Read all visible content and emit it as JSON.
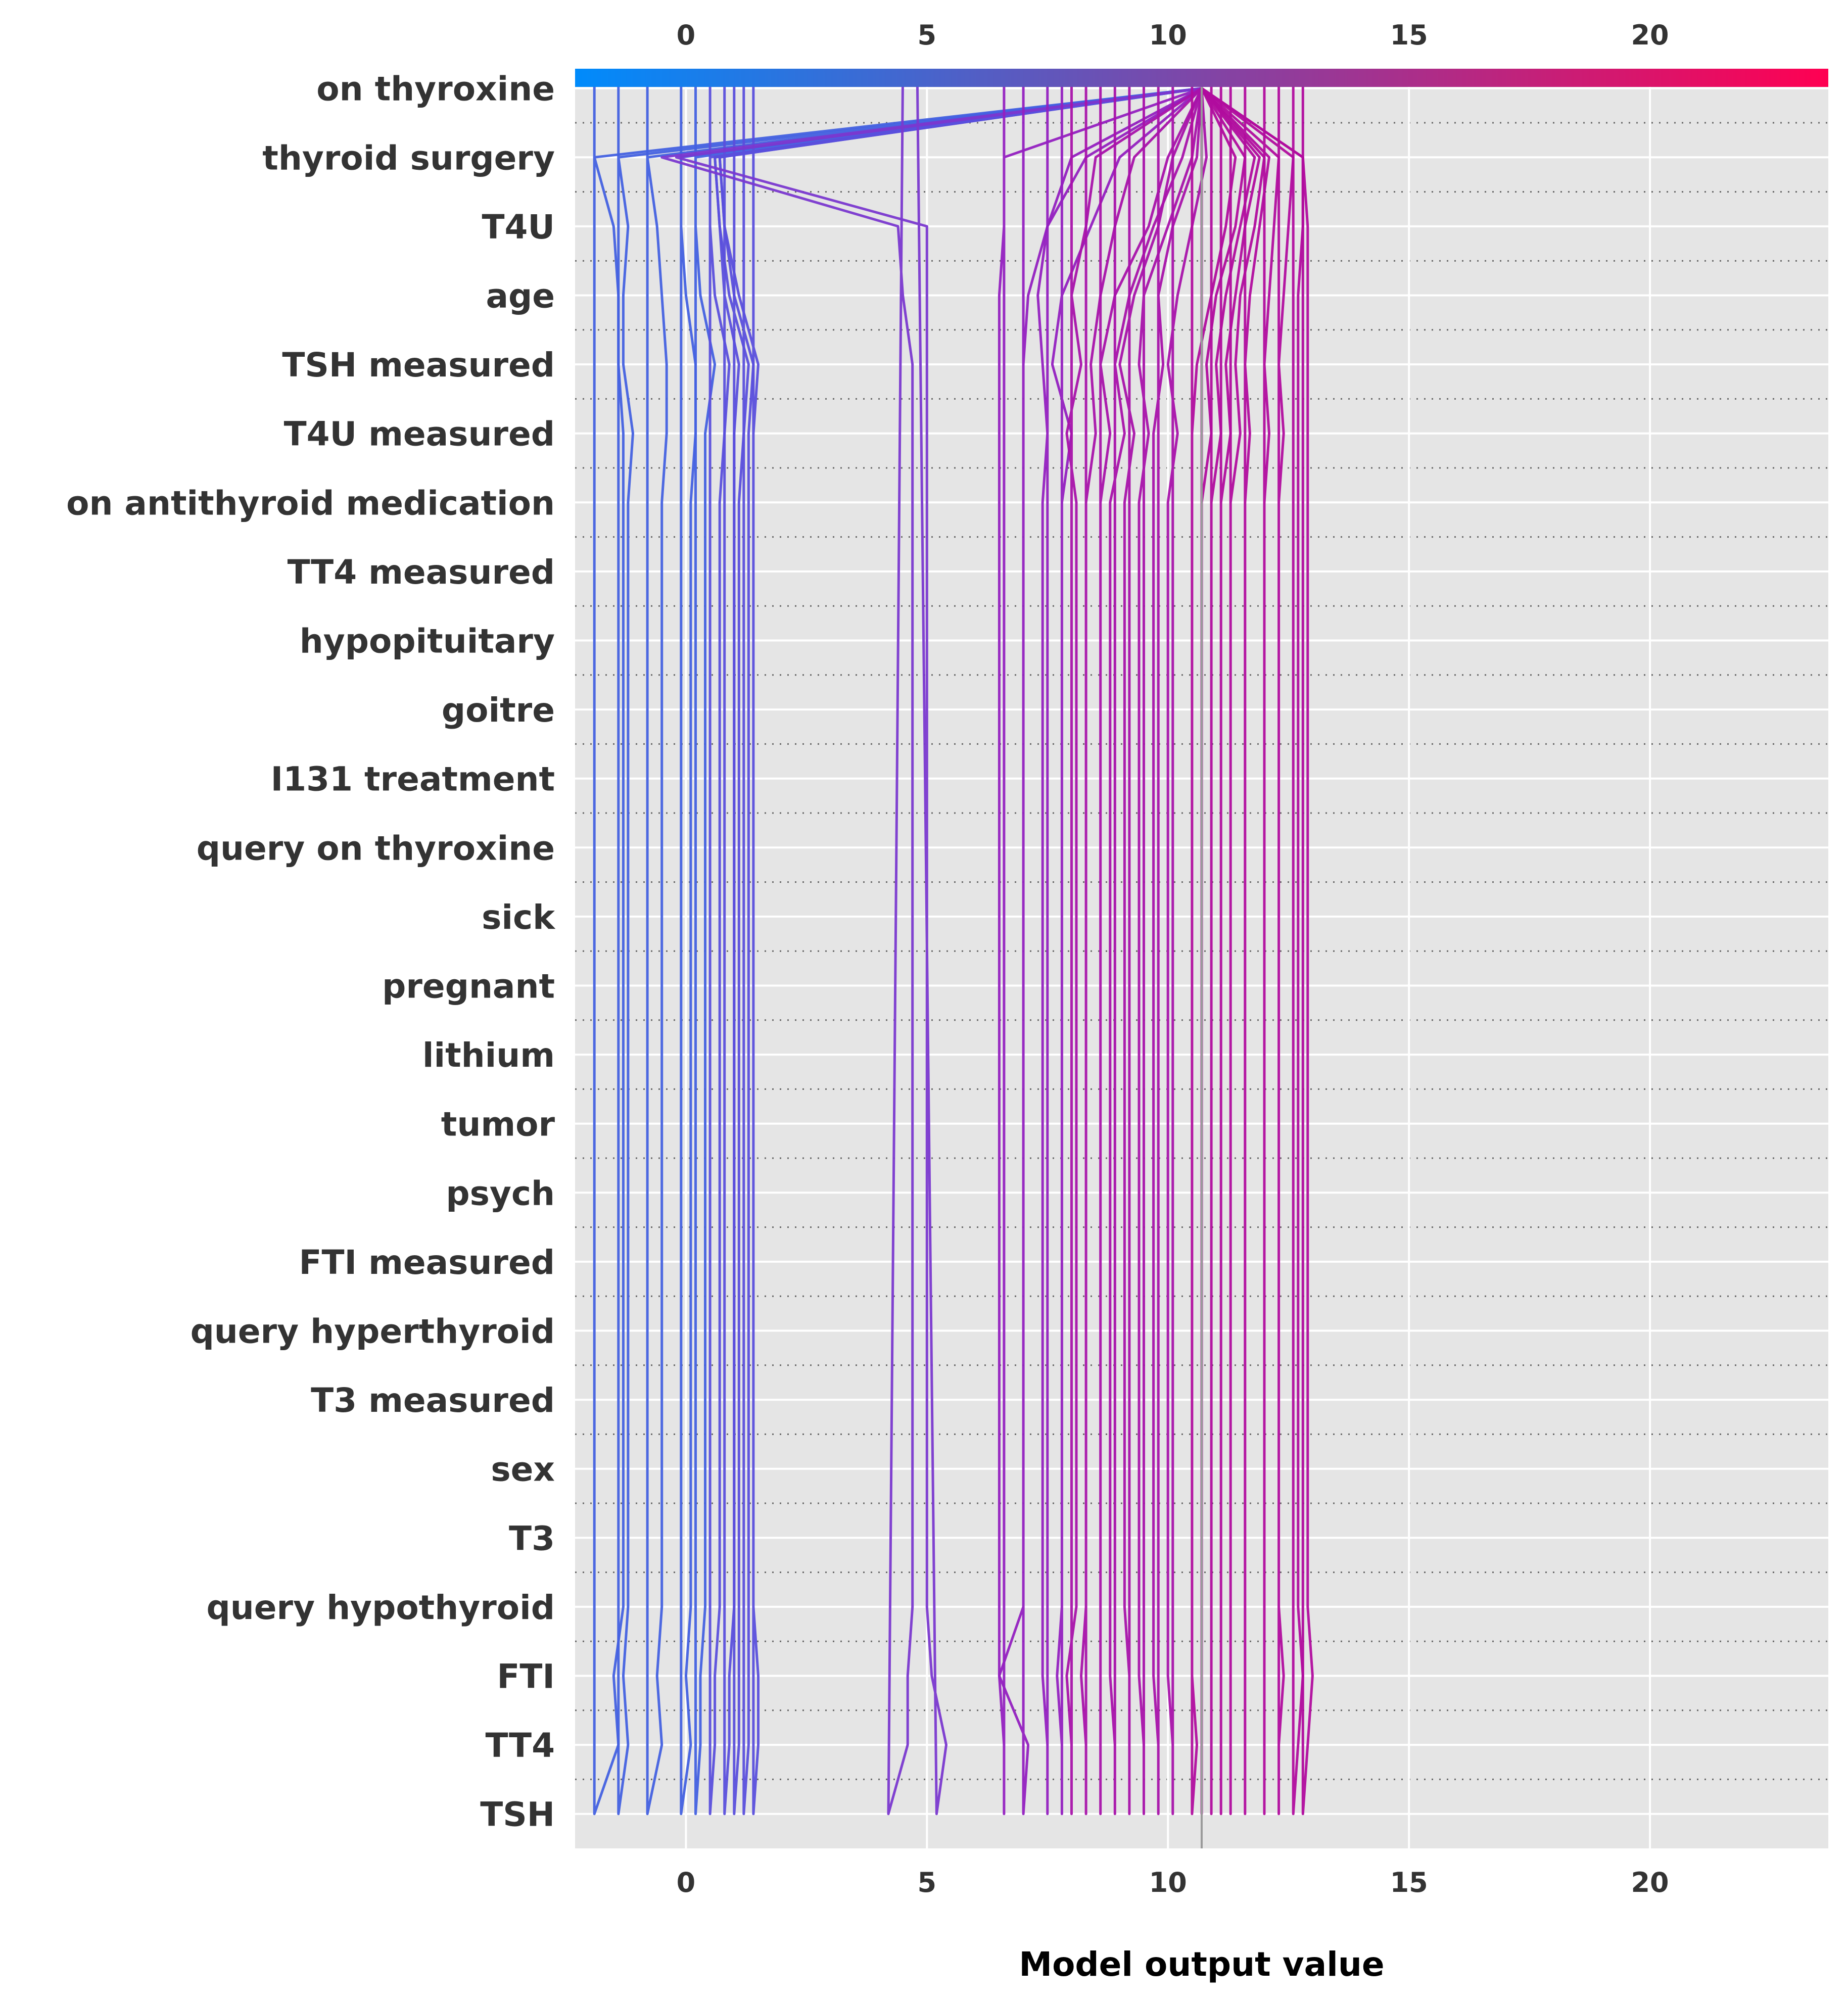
{
  "chart_data": {
    "type": "line",
    "xlabel": "Model output value",
    "xlim": [
      -2.3,
      23.7
    ],
    "xticks": [
      0,
      5,
      10,
      15,
      20
    ],
    "base_value": 10.7,
    "colorbar": {
      "min": -2.3,
      "max": 23.7,
      "colors": [
        "#008bfb",
        "#ff0052"
      ]
    },
    "line_colors": [
      "#4361e0",
      "#5a4fdc",
      "#7a38cf",
      "#9320c0",
      "#a812aa",
      "#b10c9e"
    ],
    "grid": true,
    "features": [
      "on thyroxine",
      "thyroid surgery",
      "T4U",
      "age",
      "TSH measured",
      "T4U measured",
      "on antithyroid medication",
      "TT4 measured",
      "hypopituitary",
      "goitre",
      "I131 treatment",
      "query on thyroxine",
      "sick",
      "pregnant",
      "lithium",
      "tumor",
      "psych",
      "FTI measured",
      "query hyperthyroid",
      "T3 measured",
      "sex",
      "T3",
      "query hypothyroid",
      "FTI",
      "TT4",
      "TSH"
    ],
    "paths": [
      [
        -1.9,
        -1.9,
        -1.4,
        -1.5,
        -1.3,
        -1.3,
        -1.3,
        -1.3,
        -1.3,
        -1.3,
        -1.3,
        -1.3,
        -1.3,
        -1.3,
        -1.3,
        -1.3,
        -1.3,
        -1.3,
        -1.3,
        -1.3,
        -1.3,
        -1.3,
        -1.4,
        -1.4,
        -1.5,
        -1.9,
        10.7
      ],
      [
        -1.4,
        -1.4,
        -1.2,
        -1.3,
        -1.2,
        -1.2,
        -1.2,
        -1.2,
        -1.2,
        -1.2,
        -1.2,
        -1.2,
        -1.2,
        -1.2,
        -1.2,
        -1.2,
        -1.2,
        -1.2,
        -1.2,
        -1.2,
        -1.2,
        -1.1,
        -1.3,
        -1.3,
        -1.2,
        -1.4,
        10.7
      ],
      [
        -0.8,
        -0.8,
        -0.5,
        -0.6,
        -0.5,
        -0.5,
        -0.5,
        -0.5,
        -0.5,
        -0.5,
        -0.5,
        -0.5,
        -0.5,
        -0.5,
        -0.5,
        -0.5,
        -0.5,
        -0.5,
        -0.5,
        -0.5,
        -0.5,
        -0.4,
        -0.4,
        -0.5,
        -0.6,
        -0.8,
        10.7
      ],
      [
        -0.1,
        -0.1,
        0.1,
        0.0,
        0.1,
        0.1,
        0.1,
        0.1,
        0.1,
        0.1,
        0.1,
        0.1,
        0.1,
        0.1,
        0.1,
        0.1,
        0.1,
        0.1,
        0.1,
        0.1,
        0.1,
        0.2,
        0.2,
        0.0,
        -0.1,
        -0.1,
        10.7
      ],
      [
        0.2,
        0.2,
        0.3,
        0.3,
        0.4,
        0.4,
        0.4,
        0.4,
        0.4,
        0.4,
        0.4,
        0.4,
        0.4,
        0.4,
        0.4,
        0.4,
        0.4,
        0.4,
        0.4,
        0.4,
        0.4,
        0.4,
        0.6,
        0.3,
        0.2,
        0.2,
        10.7
      ],
      [
        0.5,
        0.5,
        0.6,
        0.6,
        0.7,
        0.7,
        0.7,
        0.7,
        0.7,
        0.7,
        0.7,
        0.7,
        0.7,
        0.7,
        0.7,
        0.7,
        0.7,
        0.7,
        0.7,
        0.7,
        0.7,
        0.8,
        0.9,
        0.6,
        0.5,
        0.5,
        10.7
      ],
      [
        0.8,
        0.8,
        0.9,
        0.9,
        1.0,
        1.0,
        1.0,
        1.0,
        1.0,
        1.0,
        1.0,
        1.0,
        1.0,
        1.0,
        1.0,
        1.0,
        1.0,
        1.0,
        1.0,
        1.0,
        1.0,
        1.0,
        1.1,
        0.8,
        0.7,
        0.6,
        10.7
      ],
      [
        1.0,
        1.0,
        1.1,
        1.1,
        1.1,
        1.1,
        1.1,
        1.1,
        1.1,
        1.1,
        1.1,
        1.1,
        1.1,
        1.1,
        1.1,
        1.1,
        1.1,
        1.1,
        1.1,
        1.1,
        1.1,
        1.2,
        1.3,
        0.9,
        0.7,
        0.6,
        10.7
      ],
      [
        1.2,
        1.2,
        1.3,
        1.3,
        1.3,
        1.3,
        1.3,
        1.3,
        1.3,
        1.3,
        1.3,
        1.3,
        1.3,
        1.3,
        1.3,
        1.3,
        1.3,
        1.3,
        1.3,
        1.3,
        1.3,
        1.3,
        1.4,
        1.0,
        0.8,
        0.7,
        10.7
      ],
      [
        1.4,
        1.4,
        1.5,
        1.5,
        1.4,
        1.4,
        1.4,
        1.4,
        1.4,
        1.4,
        1.4,
        1.4,
        1.4,
        1.4,
        1.4,
        1.4,
        1.4,
        1.4,
        1.4,
        1.4,
        1.4,
        1.4,
        1.5,
        1.1,
        0.8,
        0.7,
        10.7
      ],
      [
        4.8,
        5.2,
        5.4,
        5.1,
        5.0,
        5.0,
        5.0,
        5.0,
        5.0,
        5.0,
        5.0,
        5.0,
        5.0,
        5.0,
        5.0,
        5.0,
        5.0,
        5.0,
        5.0,
        5.0,
        5.0,
        5.0,
        5.0,
        5.0,
        5.0,
        -0.2,
        10.7
      ],
      [
        4.5,
        4.2,
        4.6,
        4.6,
        4.7,
        4.7,
        4.7,
        4.7,
        4.7,
        4.7,
        4.7,
        4.7,
        4.7,
        4.7,
        4.7,
        4.7,
        4.7,
        4.7,
        4.7,
        4.7,
        4.7,
        4.7,
        4.7,
        4.5,
        4.4,
        -0.5,
        10.7
      ],
      [
        6.6,
        6.6,
        6.6,
        6.5,
        6.5,
        6.5,
        6.5,
        6.5,
        6.5,
        6.5,
        6.5,
        6.5,
        6.5,
        6.5,
        6.5,
        6.5,
        6.5,
        6.5,
        6.5,
        6.5,
        6.5,
        6.5,
        6.5,
        6.5,
        6.6,
        6.6,
        10.7
      ],
      [
        7.0,
        7.0,
        7.1,
        6.5,
        7.0,
        7.0,
        7.0,
        7.0,
        7.0,
        7.0,
        7.0,
        7.0,
        7.0,
        7.0,
        7.0,
        7.0,
        7.0,
        7.0,
        7.0,
        7.0,
        7.0,
        7.0,
        7.0,
        7.1,
        7.5,
        8.3,
        10.7
      ],
      [
        7.5,
        7.5,
        7.5,
        7.4,
        7.4,
        7.4,
        7.4,
        7.4,
        7.4,
        7.4,
        7.4,
        7.4,
        7.4,
        7.4,
        7.4,
        7.4,
        7.4,
        7.4,
        7.4,
        7.4,
        7.4,
        7.5,
        7.4,
        7.3,
        7.5,
        8.0,
        10.7
      ],
      [
        7.8,
        7.8,
        7.8,
        7.7,
        7.8,
        7.8,
        7.8,
        7.8,
        7.8,
        7.8,
        7.8,
        7.8,
        7.8,
        7.8,
        7.8,
        7.8,
        7.8,
        7.8,
        7.8,
        7.8,
        7.8,
        8.0,
        7.6,
        7.8,
        8.4,
        9.0,
        10.7
      ],
      [
        8.0,
        8.0,
        8.0,
        7.9,
        8.1,
        8.1,
        8.1,
        8.1,
        8.1,
        8.1,
        8.1,
        8.1,
        8.1,
        8.1,
        8.1,
        8.1,
        8.1,
        8.1,
        8.1,
        8.1,
        8.1,
        7.9,
        8.2,
        8.0,
        8.3,
        8.5,
        10.7
      ],
      [
        8.3,
        8.3,
        8.3,
        8.2,
        8.3,
        8.3,
        8.3,
        8.3,
        8.3,
        8.3,
        8.3,
        8.3,
        8.3,
        8.3,
        8.3,
        8.3,
        8.3,
        8.3,
        8.3,
        8.3,
        8.3,
        8.5,
        8.4,
        8.6,
        8.9,
        9.3,
        10.7
      ],
      [
        8.6,
        8.6,
        8.6,
        8.6,
        8.6,
        8.6,
        8.6,
        8.6,
        8.6,
        8.6,
        8.6,
        8.6,
        8.6,
        8.6,
        8.6,
        8.6,
        8.6,
        8.6,
        8.6,
        8.6,
        8.6,
        8.8,
        8.6,
        8.9,
        9.6,
        10.0,
        10.7
      ],
      [
        8.9,
        8.9,
        8.9,
        8.8,
        8.8,
        8.8,
        8.8,
        8.8,
        8.8,
        8.8,
        8.8,
        8.8,
        8.8,
        8.8,
        8.8,
        8.8,
        8.8,
        8.8,
        8.8,
        8.8,
        8.8,
        9.1,
        8.9,
        9.2,
        9.7,
        10.3,
        10.7
      ],
      [
        9.2,
        9.2,
        9.2,
        9.2,
        9.1,
        9.1,
        9.1,
        9.1,
        9.1,
        9.1,
        9.1,
        9.1,
        9.1,
        9.1,
        9.1,
        9.1,
        9.1,
        9.1,
        9.1,
        9.1,
        9.1,
        9.3,
        9.0,
        9.3,
        9.8,
        10.1,
        10.7
      ],
      [
        9.5,
        9.5,
        9.5,
        9.4,
        9.4,
        9.4,
        9.4,
        9.4,
        9.4,
        9.4,
        9.4,
        9.4,
        9.4,
        9.4,
        9.4,
        9.4,
        9.4,
        9.4,
        9.4,
        9.4,
        9.4,
        9.6,
        9.4,
        9.5,
        10.0,
        10.5,
        10.7
      ],
      [
        9.8,
        9.8,
        9.8,
        9.7,
        9.7,
        9.7,
        9.7,
        9.7,
        9.7,
        9.7,
        9.7,
        9.7,
        9.7,
        9.7,
        9.7,
        9.7,
        9.7,
        9.7,
        9.7,
        9.7,
        9.7,
        9.7,
        9.9,
        9.8,
        10.1,
        10.6,
        10.7
      ],
      [
        10.1,
        10.1,
        10.1,
        10.0,
        10.0,
        10.0,
        10.0,
        10.0,
        10.0,
        10.0,
        10.0,
        10.0,
        10.0,
        10.0,
        10.0,
        10.0,
        10.0,
        10.0,
        10.0,
        10.0,
        10.0,
        10.2,
        10.0,
        10.2,
        10.5,
        10.8,
        10.7
      ],
      [
        10.5,
        10.5,
        10.6,
        10.5,
        10.5,
        10.5,
        10.5,
        10.5,
        10.5,
        10.5,
        10.5,
        10.5,
        10.5,
        10.5,
        10.5,
        10.5,
        10.5,
        10.5,
        10.5,
        10.5,
        10.5,
        10.5,
        10.6,
        10.9,
        11.2,
        11.4,
        10.7
      ],
      [
        10.7,
        10.7,
        10.7,
        10.7,
        10.7,
        10.7,
        10.7,
        10.7,
        10.7,
        10.7,
        10.7,
        10.7,
        10.7,
        10.7,
        10.7,
        10.7,
        10.7,
        10.7,
        10.7,
        10.7,
        10.7,
        10.9,
        10.8,
        11.0,
        11.4,
        11.6,
        10.7
      ],
      [
        10.9,
        10.9,
        10.9,
        10.9,
        10.9,
        10.9,
        10.9,
        10.9,
        10.9,
        10.9,
        10.9,
        10.9,
        10.9,
        10.9,
        10.9,
        10.9,
        10.9,
        10.9,
        10.9,
        10.9,
        10.9,
        11.1,
        11.0,
        11.2,
        11.5,
        11.8,
        10.7
      ],
      [
        11.1,
        11.1,
        11.1,
        11.1,
        11.1,
        11.1,
        11.1,
        11.1,
        11.1,
        11.1,
        11.1,
        11.1,
        11.1,
        11.1,
        11.1,
        11.1,
        11.1,
        11.1,
        11.1,
        11.1,
        11.1,
        11.3,
        11.2,
        11.4,
        11.6,
        11.9,
        10.7
      ],
      [
        11.3,
        11.3,
        11.3,
        11.3,
        11.3,
        11.3,
        11.3,
        11.3,
        11.3,
        11.3,
        11.3,
        11.3,
        11.3,
        11.3,
        11.3,
        11.3,
        11.3,
        11.3,
        11.3,
        11.3,
        11.3,
        11.5,
        11.4,
        11.5,
        11.8,
        12.0,
        10.7
      ],
      [
        11.6,
        11.6,
        11.6,
        11.6,
        11.6,
        11.6,
        11.6,
        11.6,
        11.6,
        11.6,
        11.6,
        11.6,
        11.6,
        11.6,
        11.6,
        11.6,
        11.6,
        11.6,
        11.6,
        11.6,
        11.6,
        11.7,
        11.6,
        11.7,
        11.9,
        12.1,
        10.7
      ],
      [
        12.0,
        12.0,
        12.0,
        12.0,
        12.0,
        12.0,
        12.0,
        12.0,
        12.0,
        12.0,
        12.0,
        12.0,
        12.0,
        12.0,
        12.0,
        12.0,
        12.0,
        12.0,
        12.0,
        12.0,
        12.0,
        12.1,
        12.0,
        12.1,
        12.2,
        12.3,
        10.7
      ],
      [
        12.3,
        12.3,
        12.3,
        12.4,
        12.3,
        12.3,
        12.3,
        12.3,
        12.3,
        12.3,
        12.3,
        12.3,
        12.3,
        12.3,
        12.3,
        12.3,
        12.3,
        12.3,
        12.3,
        12.3,
        12.3,
        12.4,
        12.3,
        12.4,
        12.5,
        12.6,
        10.7
      ],
      [
        12.6,
        12.6,
        12.7,
        12.8,
        12.7,
        12.7,
        12.7,
        12.7,
        12.7,
        12.7,
        12.7,
        12.7,
        12.7,
        12.7,
        12.7,
        12.7,
        12.7,
        12.7,
        12.7,
        12.7,
        12.7,
        12.7,
        12.7,
        12.7,
        12.8,
        12.8,
        10.7
      ],
      [
        12.8,
        12.8,
        12.9,
        13.0,
        12.9,
        12.9,
        12.9,
        12.9,
        12.9,
        12.9,
        12.9,
        12.9,
        12.9,
        12.9,
        12.9,
        12.9,
        12.9,
        12.9,
        12.9,
        12.9,
        12.9,
        12.9,
        12.9,
        12.9,
        12.9,
        12.8,
        10.7
      ]
    ]
  }
}
